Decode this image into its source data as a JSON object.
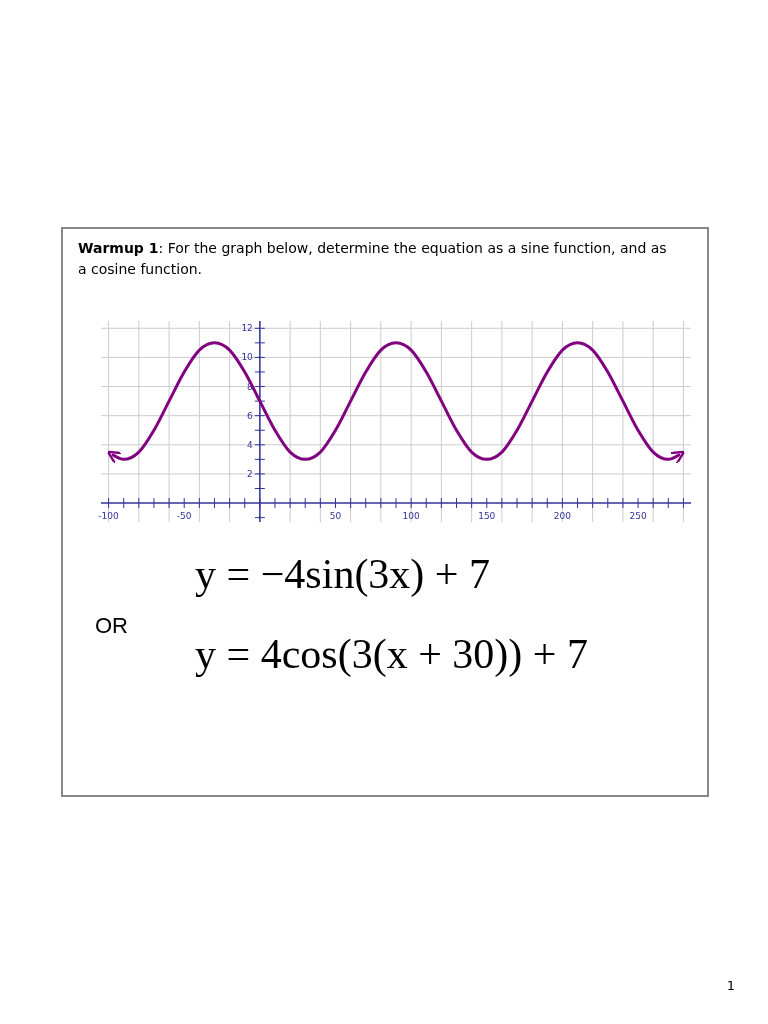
{
  "chart_data": {
    "type": "line",
    "title": "Warmup 1: For the graph below, determine the equation as a sine function, and as a cosine function.",
    "x": [
      -97,
      -90,
      -80,
      -70,
      -60,
      -50,
      -40,
      -30,
      -20,
      -10,
      0,
      10,
      20,
      30,
      40,
      50,
      60,
      70,
      80,
      90,
      100,
      110,
      120,
      130,
      140,
      150,
      160,
      170,
      180,
      190,
      200,
      210,
      220,
      230,
      240,
      250,
      260,
      270,
      277
    ],
    "series": [
      {
        "color": "#800080",
        "values": [
          3.3,
          3,
          3.5,
          5,
          7,
          9,
          10.5,
          11,
          10.5,
          9,
          7,
          5,
          3.5,
          3,
          3.5,
          5,
          7,
          9,
          10.5,
          11,
          10.5,
          9,
          7,
          5,
          3.5,
          3,
          3.5,
          5,
          7,
          9,
          10.5,
          11,
          10.5,
          9,
          7,
          5,
          3.5,
          3,
          3.3
        ]
      }
    ],
    "xlim": [
      -105,
      285
    ],
    "ylim": [
      -1.3,
      12.5
    ],
    "xticks": [
      {
        "value": -100,
        "label": "-100"
      },
      {
        "value": -90,
        "label": null
      },
      {
        "value": -80,
        "label": null
      },
      {
        "value": -70,
        "label": null
      },
      {
        "value": -60,
        "label": null
      },
      {
        "value": -50,
        "label": "-50"
      },
      {
        "value": -40,
        "label": null
      },
      {
        "value": -30,
        "label": null
      },
      {
        "value": -20,
        "label": null
      },
      {
        "value": -10,
        "label": null
      },
      {
        "value": 0,
        "label": null
      },
      {
        "value": 10,
        "label": null
      },
      {
        "value": 20,
        "label": null
      },
      {
        "value": 30,
        "label": null
      },
      {
        "value": 40,
        "label": null
      },
      {
        "value": 50,
        "label": "50"
      },
      {
        "value": 60,
        "label": null
      },
      {
        "value": 70,
        "label": null
      },
      {
        "value": 80,
        "label": null
      },
      {
        "value": 90,
        "label": null
      },
      {
        "value": 100,
        "label": "100"
      },
      {
        "value": 110,
        "label": null
      },
      {
        "value": 120,
        "label": null
      },
      {
        "value": 130,
        "label": null
      },
      {
        "value": 140,
        "label": null
      },
      {
        "value": 150,
        "label": "150"
      },
      {
        "value": 160,
        "label": null
      },
      {
        "value": 170,
        "label": null
      },
      {
        "value": 180,
        "label": null
      },
      {
        "value": 190,
        "label": null
      },
      {
        "value": 200,
        "label": "200"
      },
      {
        "value": 210,
        "label": null
      },
      {
        "value": 220,
        "label": null
      },
      {
        "value": 230,
        "label": null
      },
      {
        "value": 240,
        "label": null
      },
      {
        "value": 250,
        "label": "250"
      },
      {
        "value": 260,
        "label": null
      },
      {
        "value": 270,
        "label": null
      },
      {
        "value": 280,
        "label": null
      }
    ],
    "yticks": [
      {
        "value": -1,
        "label": null
      },
      {
        "value": 1,
        "label": null
      },
      {
        "value": 2,
        "label": "2"
      },
      {
        "value": 3,
        "label": null
      },
      {
        "value": 4,
        "label": "4"
      },
      {
        "value": 5,
        "label": null
      },
      {
        "value": 6,
        "label": "6"
      },
      {
        "value": 7,
        "label": null
      },
      {
        "value": 8,
        "label": "8"
      },
      {
        "value": 9,
        "label": null
      },
      {
        "value": 10,
        "label": "10"
      },
      {
        "value": 11,
        "label": null
      },
      {
        "value": 12,
        "label": "12"
      }
    ],
    "grid": true,
    "line_style": "solid",
    "marker": "none",
    "annotations": [
      "y = −4sin(3x) + 7",
      "OR",
      "y = 4cos(3(x + 30)) + 7",
      "1"
    ]
  }
}
